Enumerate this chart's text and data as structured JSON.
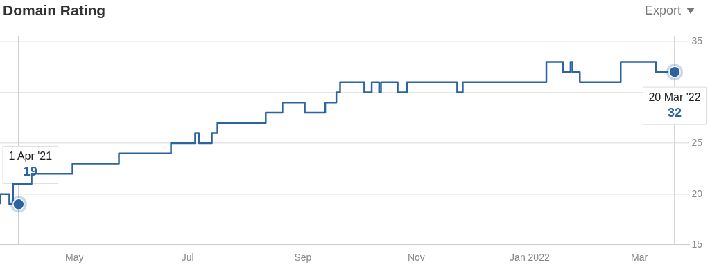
{
  "chart_data": {
    "type": "step",
    "title": "Domain Rating",
    "x": [
      "2021-03-22",
      "2021-03-27",
      "2021-03-29",
      "2021-04-08",
      "2021-04-30",
      "2021-05-25",
      "2021-06-22",
      "2021-07-05",
      "2021-07-07",
      "2021-07-14",
      "2021-07-17",
      "2021-08-12",
      "2021-08-21",
      "2021-09-02",
      "2021-09-13",
      "2021-09-19",
      "2021-09-21",
      "2021-10-04",
      "2021-10-08",
      "2021-10-12",
      "2021-10-13",
      "2021-10-22",
      "2021-10-27",
      "2021-11-23",
      "2021-11-26",
      "2022-01-10",
      "2022-01-19",
      "2022-01-23",
      "2022-01-24",
      "2022-01-28",
      "2022-02-19",
      "2022-03-10",
      "2022-03-12",
      "2022-03-20"
    ],
    "series": [
      {
        "color": "#2b64a0",
        "values": [
          19,
          20,
          19,
          21,
          22,
          23,
          24,
          25,
          26,
          25,
          26,
          27,
          28,
          29,
          28,
          29,
          30,
          31,
          30,
          31,
          30,
          31,
          30,
          31,
          30,
          31,
          33,
          32,
          33,
          32,
          31,
          33,
          32,
          32
        ]
      }
    ],
    "xlim": [
      "2021-03-22",
      "2022-03-28"
    ],
    "xticks": [
      {
        "value": "2021-05-01",
        "label": "May"
      },
      {
        "value": "2021-07-01",
        "label": "Jul"
      },
      {
        "value": "2021-09-01",
        "label": "Sep"
      },
      {
        "value": "2021-11-01",
        "label": "Nov"
      },
      {
        "value": "2022-01-01",
        "label": "Jan 2022"
      },
      {
        "value": "2022-03-01",
        "label": "Mar"
      }
    ],
    "ylim": [
      15,
      35
    ],
    "yticks": [
      15,
      20,
      25,
      {
        "value": 30,
        "label": null
      },
      35
    ],
    "grid": "y",
    "legend": false,
    "marker": "none",
    "line_style": "solid",
    "ref_lines": [
      {
        "axis": "x",
        "value": "2021-04-01",
        "color": "#cccccc"
      },
      {
        "axis": "x",
        "value": "2022-03-20",
        "color": "#cccccc"
      }
    ],
    "annotations": [
      {
        "text": "1 Apr '21\n19",
        "x": "2021-04-01",
        "y": 19
      },
      {
        "text": "20 Mar '22\n32",
        "x": "2022-03-20",
        "y": 32
      },
      "Export"
    ]
  }
}
